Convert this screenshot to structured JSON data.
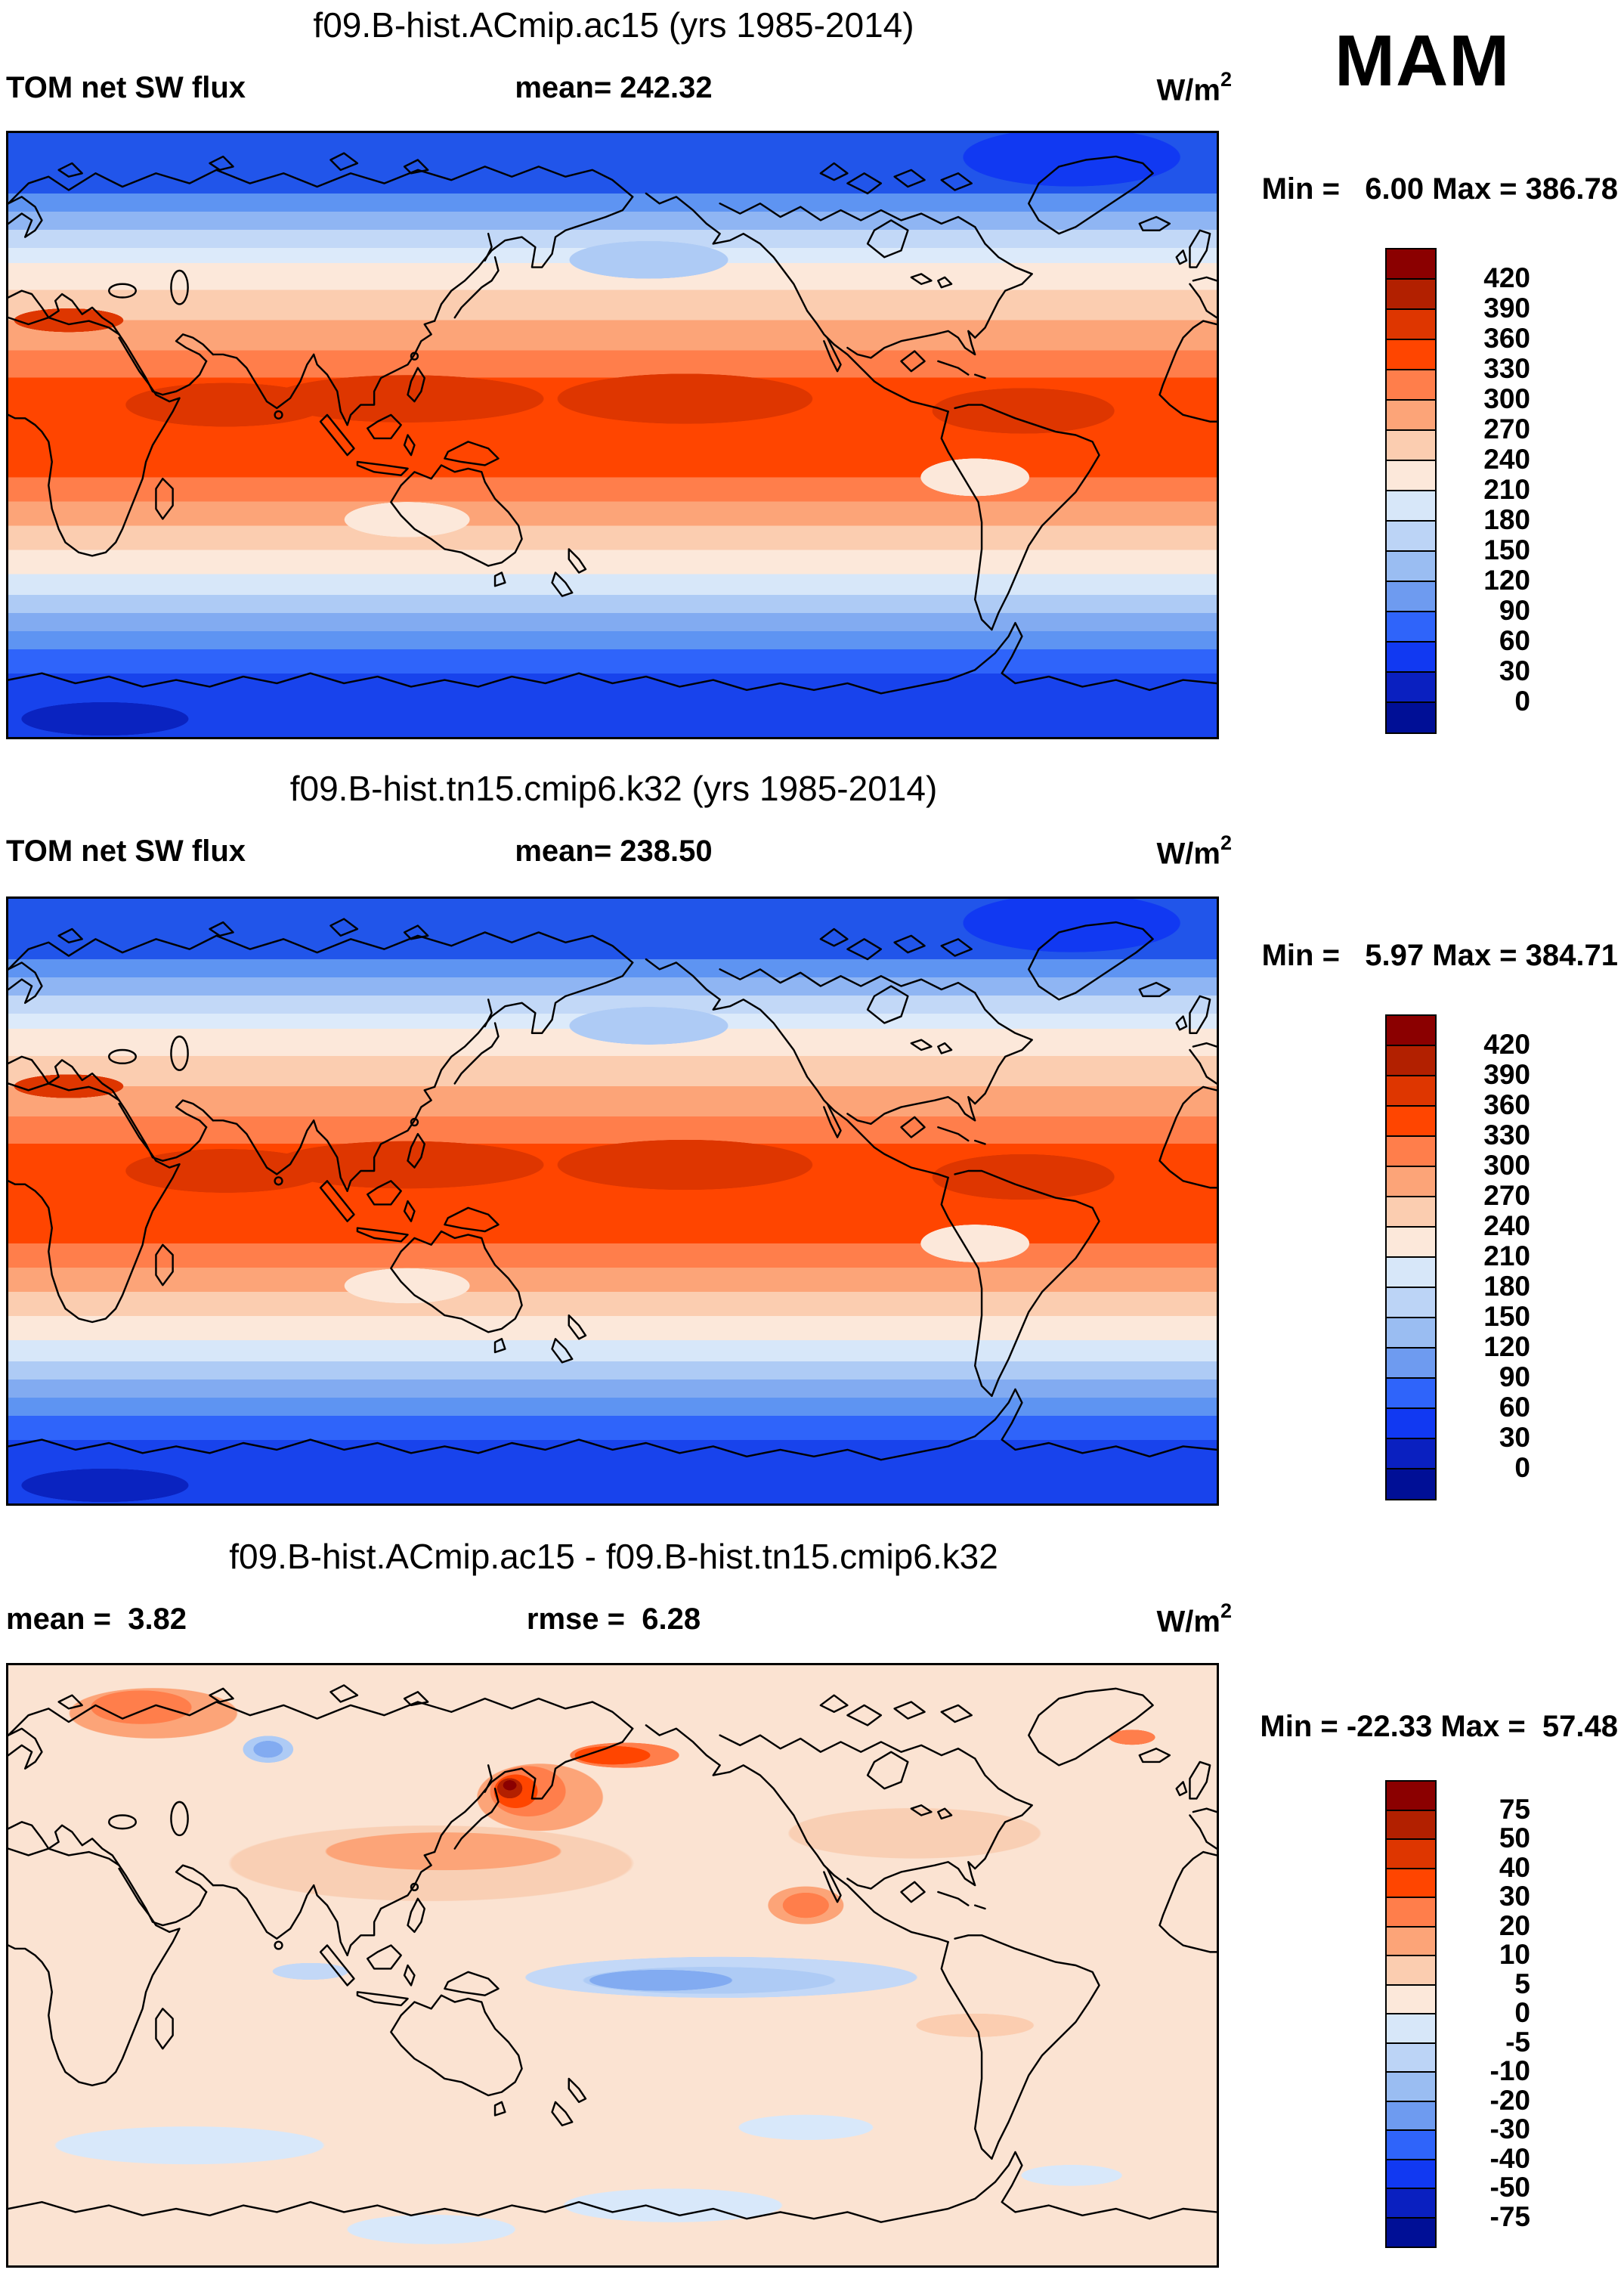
{
  "season_label": "MAM",
  "units": {
    "base": "W/m",
    "exp": "2"
  },
  "palette": [
    "#8B0000",
    "#B22000",
    "#DE3600",
    "#FF4500",
    "#FF7E4B",
    "#FCA478",
    "#FBCDB0",
    "#FCE8DA",
    "#D7E7F9",
    "#BCD4F6",
    "#9ABDF2",
    "#6E9BF0",
    "#2F64FA",
    "#1139F2",
    "#0A20C0",
    "#000F96"
  ],
  "panels": [
    {
      "title": "f09.B-hist.ACmip.ac15 (yrs 1985-2014)",
      "left_stat": "TOM net SW flux",
      "center_stat": "mean= 242.32",
      "minmax": "Min =   6.00 Max = 386.78",
      "colorbar_labels": [
        "420",
        "390",
        "360",
        "330",
        "300",
        "270",
        "240",
        "210",
        "180",
        "150",
        "120",
        "90",
        "60",
        "30",
        "0"
      ]
    },
    {
      "title": "f09.B-hist.tn15.cmip6.k32 (yrs 1985-2014)",
      "left_stat": "TOM net SW flux",
      "center_stat": "mean= 238.50",
      "minmax": "Min =   5.97 Max = 384.71",
      "colorbar_labels": [
        "420",
        "390",
        "360",
        "330",
        "300",
        "270",
        "240",
        "210",
        "180",
        "150",
        "120",
        "90",
        "60",
        "30",
        "0"
      ]
    },
    {
      "title": "f09.B-hist.ACmip.ac15 - f09.B-hist.tn15.cmip6.k32",
      "left_stat": "mean =  3.82",
      "center_stat": "rmse =  6.28",
      "minmax": "Min = -22.33 Max =  57.48",
      "colorbar_labels": [
        "75",
        "50",
        "40",
        "30",
        "20",
        "10",
        "5",
        "0",
        "-5",
        "-10",
        "-20",
        "-30",
        "-40",
        "-50",
        "-75"
      ]
    }
  ],
  "chart_data": [
    {
      "type": "heatmap",
      "subtype": "filled-contour-world-map",
      "projection": "cylindrical equidistant, Pacific-centered (0E-360E, 90N-90S)",
      "title": "f09.B-hist.ACmip.ac15 (yrs 1985-2014)",
      "variable": "TOM net SW flux",
      "units": "W/m2",
      "season": "MAM",
      "mean": 242.32,
      "min": 6.0,
      "max": 386.78,
      "levels": [
        0,
        30,
        60,
        90,
        120,
        150,
        180,
        210,
        240,
        270,
        300,
        330,
        360,
        390,
        420
      ],
      "palette_order": "dark red (>420) at top of legend to navy (<0) at bottom",
      "pattern": "high values (>330, orange/dark red) in tropics and NH subtropics incl. Africa-Arabia-India and central Pacific; values decrease poleward to <30 (dark blue) at Antarctic edge and ~60-120 (vivid blue) over Arctic"
    },
    {
      "type": "heatmap",
      "subtype": "filled-contour-world-map",
      "projection": "cylindrical equidistant, Pacific-centered (0E-360E, 90N-90S)",
      "title": "f09.B-hist.tn15.cmip6.k32 (yrs 1985-2014)",
      "variable": "TOM net SW flux",
      "units": "W/m2",
      "season": "MAM",
      "mean": 238.5,
      "min": 5.97,
      "max": 384.71,
      "levels": [
        0,
        30,
        60,
        90,
        120,
        150,
        180,
        210,
        240,
        270,
        300,
        330,
        360,
        390,
        420
      ],
      "palette_order": "dark red (>420) at top of legend to navy (<0) at bottom",
      "pattern": "nearly identical zonal structure to case 1; dark red maxima over equatorial/central Pacific, tropical Atlantic and Arabia-India; blues poleward"
    },
    {
      "type": "heatmap",
      "subtype": "filled-contour-difference-map",
      "projection": "cylindrical equidistant, Pacific-centered (0E-360E, 90N-90S)",
      "title": "f09.B-hist.ACmip.ac15 - f09.B-hist.tn15.cmip6.k32",
      "variable": "TOM net SW flux difference",
      "units": "W/m2",
      "season": "MAM",
      "mean": 3.82,
      "rmse": 6.28,
      "min": -22.33,
      "max": 57.48,
      "levels": [
        -75,
        -50,
        -40,
        -30,
        -20,
        -10,
        -5,
        0,
        5,
        10,
        20,
        30,
        40,
        50,
        75
      ],
      "pattern": "mostly +0-5 (pale peach); +5-20 band over North Pacific and NA; strong positive spot (>50) near Kamchatka/Bering; negative band (-5 to -20, light blue) along equatorial Pacific; scattered small negative patches in Southern Ocean"
    }
  ]
}
